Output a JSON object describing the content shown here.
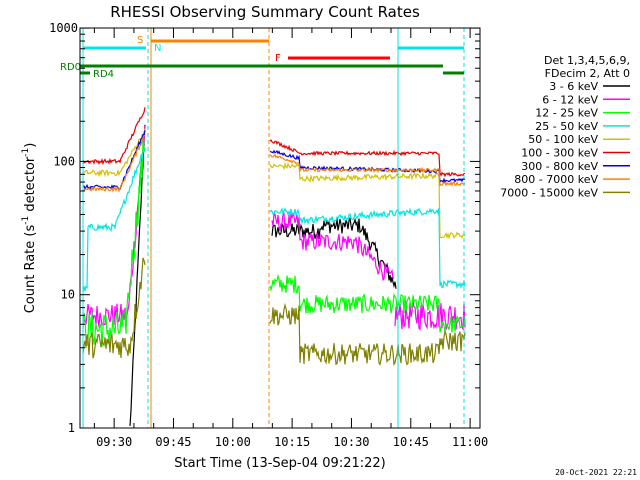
{
  "chart_data": {
    "type": "line",
    "title": "RHESSI Observing Summary Count Rates",
    "xlabel": "Start Time (13-Sep-04 09:21:22)",
    "ylabel_main": "Count Rate (s",
    "ylabel_sup1": "-1",
    "ylabel_mid": " detector",
    "ylabel_sup2": "-1",
    "ylabel_end": ")",
    "timestamp": "20-Oct-2021 22:21",
    "x_ticks": [
      "09:30",
      "09:45",
      "10:00",
      "10:15",
      "10:30",
      "10:45",
      "11:00"
    ],
    "y_ticks": [
      "1",
      "10",
      "100",
      "1000"
    ],
    "ylim": [
      1,
      1000
    ],
    "yscale": "log",
    "legend_header": [
      "Det 1,3,4,5,6,9,",
      "FDecim 2, Att 0"
    ],
    "flags": {
      "rd0": {
        "label": "RD0",
        "color": "#008000"
      },
      "rd4": {
        "label": "RD4",
        "color": "#008000"
      },
      "s": {
        "label": "S",
        "color": "#ff8000"
      },
      "n": {
        "label": "N",
        "color": "#00e5e5"
      },
      "f": {
        "label": "F",
        "color": "#ff0000"
      }
    },
    "series": [
      {
        "name": "3 - 6 keV",
        "color": "#000000"
      },
      {
        "name": "6 - 12 keV",
        "color": "#ff00ff"
      },
      {
        "name": "12 - 25 keV",
        "color": "#00ff00"
      },
      {
        "name": "25 - 50 keV",
        "color": "#00e5e5"
      },
      {
        "name": "50 - 100 keV",
        "color": "#d4c000"
      },
      {
        "name": "100 - 300 keV",
        "color": "#e00000"
      },
      {
        "name": "300 - 800 keV",
        "color": "#0000e0"
      },
      {
        "name": "800 - 7000 keV",
        "color": "#ff8000"
      },
      {
        "name": "7000 - 15000 keV",
        "color": "#808000"
      }
    ]
  }
}
